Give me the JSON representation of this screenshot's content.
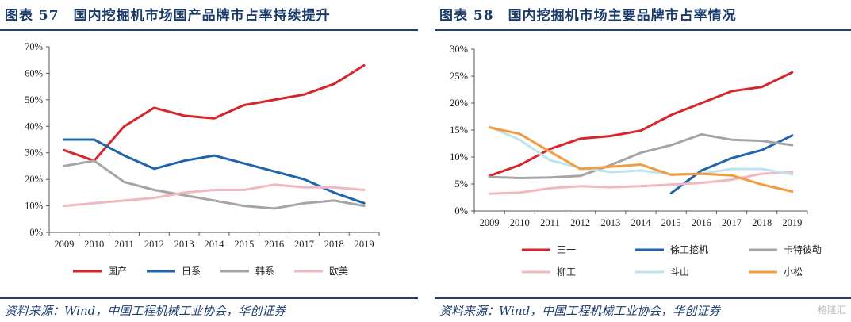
{
  "watermark": "格隆汇",
  "charts": [
    {
      "title": "图表 57　国内挖掘机市场国产品牌市占率持续提升",
      "source": "资料来源：Wind，中国工程机械工业协会，华创证券"
    },
    {
      "title": "图表 58　国内挖掘机市场主要品牌市占率情况",
      "source": "资料来源：Wind，中国工程机械工业协会，华创证券"
    }
  ],
  "chart_data": [
    {
      "type": "line",
      "x": [
        "2009",
        "2010",
        "2011",
        "2012",
        "2013",
        "2014",
        "2015",
        "2016",
        "2017",
        "2018",
        "2019"
      ],
      "ylim": [
        0,
        70
      ],
      "yticks": [
        "0%",
        "10%",
        "20%",
        "30%",
        "40%",
        "50%",
        "60%",
        "70%"
      ],
      "grid": false,
      "legend_position": "bottom",
      "series": [
        {
          "name": "国产",
          "color": "#d7262b",
          "values": [
            31,
            27,
            40,
            47,
            44,
            43,
            48,
            50,
            52,
            56,
            63
          ]
        },
        {
          "name": "日系",
          "color": "#1f64ad",
          "values": [
            35,
            35,
            29,
            24,
            27,
            29,
            26,
            23,
            20,
            15,
            11
          ]
        },
        {
          "name": "韩系",
          "color": "#a5a5a5",
          "values": [
            25,
            27,
            19,
            16,
            14,
            12,
            10,
            9,
            11,
            12,
            10
          ]
        },
        {
          "name": "欧美",
          "color": "#f0b8bf",
          "values": [
            10,
            11,
            12,
            13,
            15,
            16,
            16,
            18,
            17,
            17,
            16
          ]
        }
      ]
    },
    {
      "type": "line",
      "x": [
        "2009",
        "2010",
        "2011",
        "2012",
        "2013",
        "2014",
        "2015",
        "2016",
        "2017",
        "2018",
        "2019"
      ],
      "ylim": [
        0,
        30
      ],
      "yticks": [
        "0%",
        "5%",
        "10%",
        "15%",
        "20%",
        "25%",
        "30%"
      ],
      "grid": false,
      "legend_position": "bottom",
      "series": [
        {
          "name": "三一",
          "color": "#d7262b",
          "values": [
            6.5,
            8.5,
            11.5,
            13.4,
            13.9,
            14.9,
            17.8,
            20.0,
            22.2,
            23.0,
            25.7
          ]
        },
        {
          "name": "徐工挖机",
          "color": "#1f64ad",
          "values": [
            null,
            null,
            null,
            null,
            null,
            null,
            3.3,
            7.5,
            9.8,
            11.3,
            14.0
          ]
        },
        {
          "name": "卡特彼勒",
          "color": "#a5a5a5",
          "values": [
            6.3,
            6.1,
            6.2,
            6.5,
            8.5,
            10.8,
            12.2,
            14.2,
            13.2,
            13.0,
            12.2
          ]
        },
        {
          "name": "柳工",
          "color": "#f0b8bf",
          "values": [
            3.2,
            3.4,
            4.2,
            4.6,
            4.4,
            4.6,
            4.9,
            5.2,
            5.8,
            6.9,
            7.2
          ]
        },
        {
          "name": "斗山",
          "color": "#bfe3ee",
          "values": [
            15.6,
            13.2,
            9.4,
            8.0,
            7.2,
            7.5,
            6.8,
            6.9,
            7.8,
            7.8,
            6.8
          ]
        },
        {
          "name": "小松",
          "color": "#f39c3e",
          "values": [
            15.5,
            14.3,
            11.0,
            7.8,
            8.2,
            8.6,
            6.7,
            6.9,
            6.6,
            4.9,
            3.6
          ]
        }
      ]
    }
  ]
}
